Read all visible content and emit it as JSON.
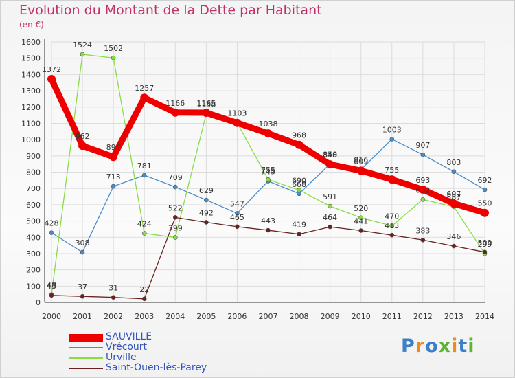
{
  "chart_data": {
    "type": "line",
    "title": "Evolution du Montant de la Dette par Habitant",
    "subtitle": "(en €)",
    "categories": [
      "2000",
      "2001",
      "2002",
      "2003",
      "2004",
      "2005",
      "2006",
      "2007",
      "2008",
      "2009",
      "2010",
      "2011",
      "2012",
      "2013",
      "2014"
    ],
    "ylim": [
      0,
      1600
    ],
    "yticks": [
      0,
      100,
      200,
      300,
      400,
      500,
      600,
      700,
      800,
      900,
      1000,
      1100,
      1200,
      1300,
      1400,
      1500,
      1600
    ],
    "grid": true,
    "legend_position": "bottom-left",
    "series": [
      {
        "name": "SAUVILLE",
        "color": "#ee0000",
        "values": [
          1372,
          962,
          894,
          1257,
          1166,
          1165,
          1103,
          1038,
          968,
          848,
          809,
          755,
          693,
          607,
          550
        ]
      },
      {
        "name": "Vrécourt",
        "color": "#4a8cc7",
        "values": [
          428,
          308,
          713,
          781,
          709,
          629,
          547,
          745,
          668,
          850,
          816,
          1003,
          907,
          803,
          692
        ]
      },
      {
        "name": "Urville",
        "color": "#88dd44",
        "values": [
          48,
          1524,
          1502,
          424,
          399,
          1158,
          1103,
          755,
          690,
          591,
          520,
          470,
          632,
          587,
          299
        ]
      },
      {
        "name": "Saint-Ouen-lès-Parey",
        "color": "#6b2020",
        "values": [
          43,
          37,
          31,
          22,
          522,
          492,
          465,
          443,
          419,
          464,
          441,
          413,
          383,
          346,
          309
        ]
      }
    ],
    "data_labels": {
      "SAUVILLE": [
        1372,
        962,
        894,
        1257,
        1166,
        1165,
        1103,
        1038,
        968,
        848,
        809,
        755,
        693,
        607,
        550
      ],
      "Vrécourt": [
        428,
        308,
        713,
        781,
        709,
        629,
        547,
        745,
        668,
        850,
        816,
        1003,
        907,
        803,
        692
      ],
      "Urville": [
        48,
        1524,
        1502,
        424,
        399,
        1158,
        1103,
        755,
        690,
        591,
        520,
        470,
        632,
        587,
        299
      ],
      "Saint-Ouen-lès-Parey": [
        43,
        37,
        31,
        22,
        522,
        492,
        465,
        443,
        419,
        464,
        441,
        413,
        383,
        346,
        309
      ]
    }
  },
  "branding": {
    "logo_text": "Proxiti",
    "logo_colors": [
      "#3a7fc8",
      "#f08a1e",
      "#3a7fc8",
      "#5bb530",
      "#f08a1e",
      "#3a7fc8",
      "#5bb530"
    ]
  }
}
